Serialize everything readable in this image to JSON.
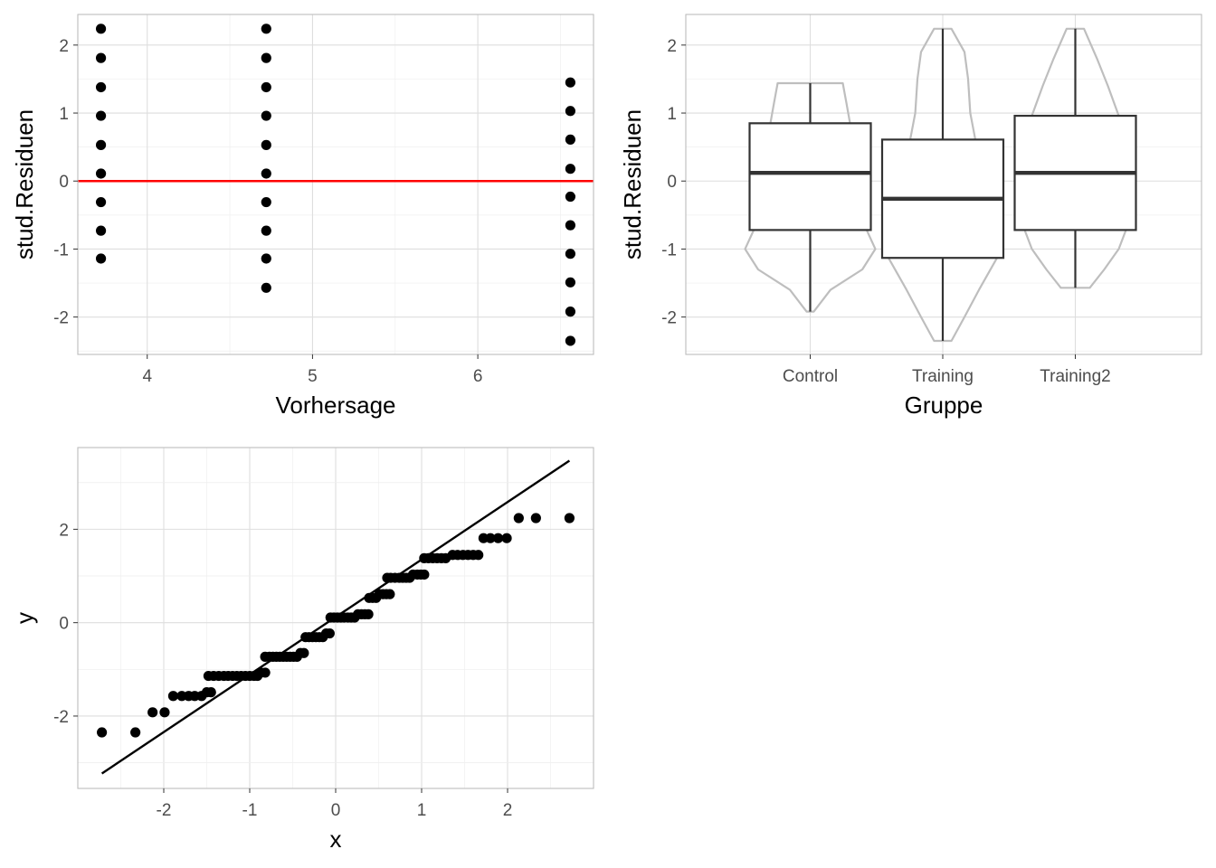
{
  "chart_data": [
    {
      "type": "scatter",
      "xlabel": "Vorhersage",
      "ylabel": "stud.Residuen",
      "xlim": [
        3.58,
        6.7
      ],
      "ylim": [
        -2.55,
        2.45
      ],
      "xticks": [
        4,
        5,
        6
      ],
      "yticks": [
        -2,
        -1,
        0,
        1,
        2
      ],
      "grid": true,
      "reference_line": {
        "y": 0,
        "color": "#ff0000"
      },
      "point_color": "#000000",
      "series": [
        {
          "x": 3.72,
          "values": [
            2.24,
            1.81,
            1.38,
            0.96,
            0.53,
            0.11,
            -0.31,
            -0.73,
            -1.14
          ]
        },
        {
          "x": 4.72,
          "values": [
            2.24,
            1.81,
            1.38,
            0.96,
            0.53,
            0.11,
            -0.31,
            -0.73,
            -1.14,
            -1.57
          ]
        },
        {
          "x": 6.56,
          "values": [
            1.45,
            1.03,
            0.61,
            0.18,
            -0.23,
            -0.65,
            -1.07,
            -1.49,
            -1.92,
            -2.35
          ]
        }
      ]
    },
    {
      "type": "box",
      "xlabel": "Gruppe",
      "ylabel": "stud.Residuen",
      "ylim": [
        -2.55,
        2.45
      ],
      "yticks": [
        -2,
        -1,
        0,
        1,
        2
      ],
      "categories": [
        "Control",
        "Training",
        "Training2"
      ],
      "grid": true,
      "violin_color": "#bebebe",
      "box_color": "#333333",
      "boxes": [
        {
          "min": -1.92,
          "q1": -0.72,
          "median": 0.12,
          "q3": 0.85,
          "max": 1.44
        },
        {
          "min": -2.35,
          "q1": -1.13,
          "median": -0.26,
          "q3": 0.61,
          "max": 2.24
        },
        {
          "min": -1.57,
          "q1": -0.72,
          "median": 0.12,
          "q3": 0.96,
          "max": 2.24
        }
      ],
      "violins": [
        {
          "y": [
            -1.92,
            -1.6,
            -1.3,
            -1.0,
            -0.72,
            -0.3,
            0.12,
            0.5,
            0.85,
            1.15,
            1.44
          ],
          "w": [
            0.05,
            0.28,
            0.72,
            0.9,
            0.78,
            0.62,
            0.64,
            0.62,
            0.55,
            0.5,
            0.45
          ]
        },
        {
          "y": [
            -2.35,
            -2.0,
            -1.6,
            -1.13,
            -0.6,
            -0.26,
            0.2,
            0.61,
            1.0,
            1.5,
            1.9,
            2.24
          ],
          "w": [
            0.12,
            0.3,
            0.5,
            0.75,
            0.72,
            0.66,
            0.58,
            0.45,
            0.38,
            0.35,
            0.3,
            0.12
          ]
        },
        {
          "y": [
            -1.57,
            -1.3,
            -1.0,
            -0.72,
            -0.3,
            0.12,
            0.5,
            0.96,
            1.4,
            1.8,
            2.24
          ],
          "w": [
            0.2,
            0.4,
            0.6,
            0.7,
            0.78,
            0.8,
            0.75,
            0.6,
            0.45,
            0.3,
            0.12
          ]
        }
      ]
    },
    {
      "type": "scatter",
      "xlabel": "x",
      "ylabel": "y",
      "xlim": [
        -3.0,
        3.0
      ],
      "ylim": [
        -3.55,
        3.75
      ],
      "xticks": [
        -2,
        -1,
        0,
        1,
        2
      ],
      "yticks": [
        -2,
        0,
        2
      ],
      "grid": true,
      "reference_line": {
        "x": [
          -2.72,
          2.72
        ],
        "y": [
          -3.23,
          3.47
        ],
        "color": "#000000"
      },
      "point_color": "#000000",
      "groups": [
        {
          "y": -2.35,
          "x": [
            -2.72,
            -2.33
          ]
        },
        {
          "y": -1.92,
          "x": [
            -2.13,
            -1.99
          ]
        },
        {
          "y": -1.57,
          "x": [
            -1.89,
            -1.79,
            -1.71,
            -1.64,
            -1.56
          ]
        },
        {
          "y": -1.49,
          "x": [
            -1.5,
            -1.45
          ]
        },
        {
          "y": -1.14,
          "x": [
            -1.48,
            -1.42,
            -1.36,
            -1.3,
            -1.25,
            -1.2,
            -1.15,
            -1.1,
            -1.05,
            -1.0,
            -0.95,
            -0.91
          ]
        },
        {
          "y": -1.07,
          "x": [
            -0.87,
            -0.82
          ]
        },
        {
          "y": -0.73,
          "x": [
            -0.82,
            -0.77,
            -0.73,
            -0.69,
            -0.65,
            -0.61,
            -0.57,
            -0.53,
            -0.49,
            -0.45
          ]
        },
        {
          "y": -0.65,
          "x": [
            -0.41,
            -0.37
          ]
        },
        {
          "y": -0.31,
          "x": [
            -0.35,
            -0.31,
            -0.27,
            -0.23,
            -0.19,
            -0.15
          ]
        },
        {
          "y": -0.23,
          "x": [
            -0.11,
            -0.07
          ]
        },
        {
          "y": 0.11,
          "x": [
            -0.06,
            -0.02,
            0.02,
            0.06,
            0.1,
            0.14,
            0.18,
            0.22
          ]
        },
        {
          "y": 0.18,
          "x": [
            0.26,
            0.3,
            0.34,
            0.38
          ]
        },
        {
          "y": 0.53,
          "x": [
            0.39,
            0.43,
            0.47
          ]
        },
        {
          "y": 0.61,
          "x": [
            0.51,
            0.55,
            0.59,
            0.63
          ]
        },
        {
          "y": 0.96,
          "x": [
            0.6,
            0.64,
            0.69,
            0.74,
            0.78,
            0.82,
            0.86
          ]
        },
        {
          "y": 1.03,
          "x": [
            0.9,
            0.95,
            0.99,
            1.03
          ]
        },
        {
          "y": 1.38,
          "x": [
            1.03,
            1.08,
            1.13,
            1.18,
            1.23,
            1.28
          ]
        },
        {
          "y": 1.45,
          "x": [
            1.36,
            1.42,
            1.48,
            1.54,
            1.6,
            1.66
          ]
        },
        {
          "y": 1.81,
          "x": [
            1.72,
            1.8,
            1.89,
            1.99
          ]
        },
        {
          "y": 2.24,
          "x": [
            2.13,
            2.33,
            2.72
          ]
        }
      ]
    }
  ]
}
